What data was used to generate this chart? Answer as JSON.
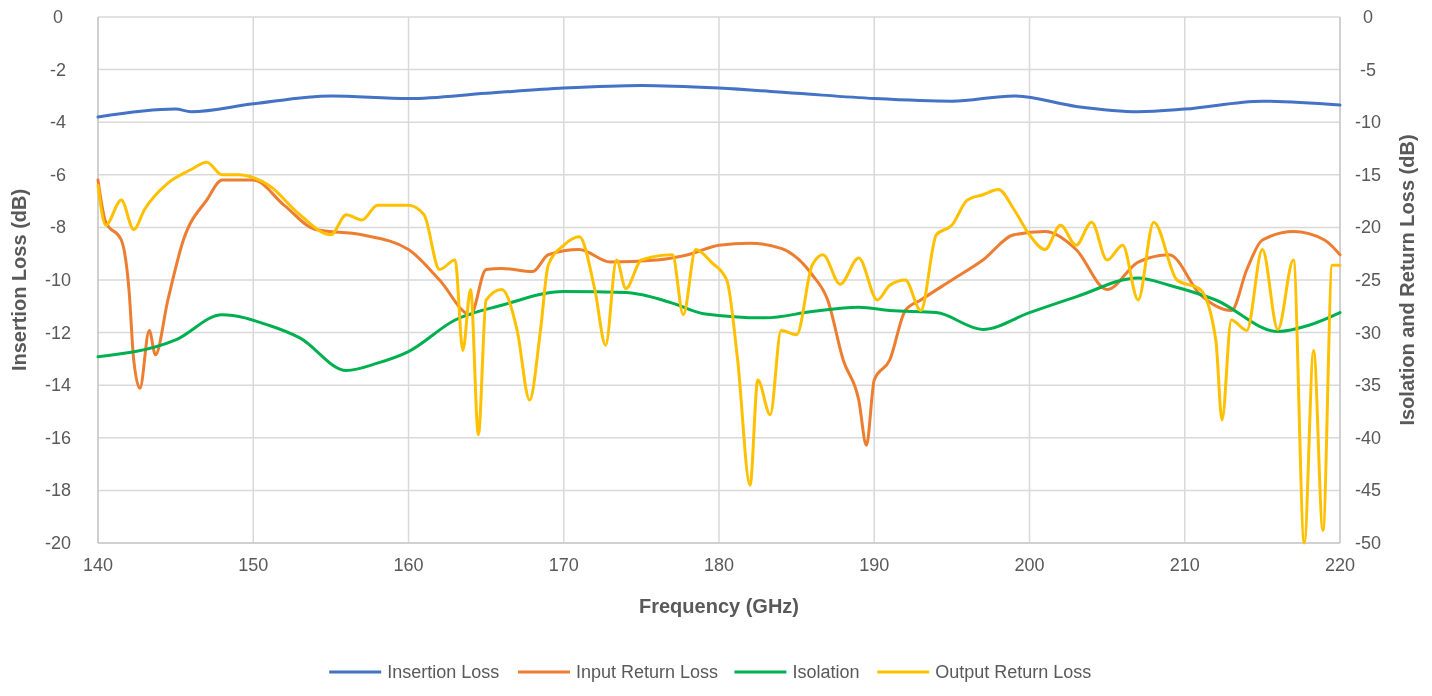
{
  "chart_data": {
    "type": "line",
    "xlabel": "Frequency (GHz)",
    "ylabel": "Insertion Loss (dB)",
    "y2label": "Isolation and Return Loss (dB)",
    "xlim": [
      140,
      220
    ],
    "xticks": [
      140,
      150,
      160,
      170,
      180,
      190,
      200,
      210,
      220
    ],
    "ylim": [
      -20,
      0
    ],
    "yticks": [
      -20,
      -18,
      -16,
      -14,
      -12,
      -10,
      -8,
      -6,
      -4,
      -2,
      0
    ],
    "y2lim": [
      -50,
      0
    ],
    "y2ticks": [
      -50,
      -45,
      -40,
      -35,
      -30,
      -25,
      -20,
      -15,
      -10,
      -5,
      0
    ],
    "grid": true,
    "legend": "bottom",
    "line_style": "solid",
    "marker": "none",
    "series": [
      {
        "name": "Insertion Loss",
        "color": "#4472c4",
        "x": [
          140,
          145,
          146,
          150,
          155,
          160,
          165,
          170,
          175,
          180,
          185,
          190,
          195,
          199,
          203,
          207,
          210,
          215,
          220
        ],
        "values": [
          -3.8,
          -3.5,
          -3.6,
          -3.3,
          -3.0,
          -3.1,
          -2.9,
          -2.7,
          -2.6,
          -2.7,
          -2.9,
          -3.1,
          -3.2,
          -3.0,
          -3.4,
          -3.6,
          -3.5,
          -3.2,
          -3.35
        ]
      },
      {
        "name": "Input Return Loss",
        "color": "#ed7d31",
        "axis": "y2",
        "x": [
          140,
          140.5,
          141.5,
          142,
          142.3,
          142.7,
          143.3,
          143.7,
          144.5,
          145.5,
          147,
          148,
          150,
          152,
          154,
          157,
          160,
          162,
          164,
          165,
          166,
          168,
          169,
          171,
          173,
          176,
          178,
          180,
          182,
          184,
          186,
          187,
          188,
          189,
          189.5,
          190,
          191,
          192,
          193,
          195,
          197,
          199,
          201,
          203,
          205,
          207,
          209,
          211,
          213,
          214,
          215,
          217,
          219,
          220
        ],
        "values": [
          -15.5,
          -19.5,
          -21.2,
          -26,
          -32.6,
          -35.3,
          -29.8,
          -32.1,
          -26.9,
          -21.2,
          -17.4,
          -15.5,
          -15.5,
          -17.9,
          -20.2,
          -20.7,
          -22.1,
          -25,
          -28.3,
          -24,
          -23.9,
          -24.2,
          -22.6,
          -22.1,
          -23.3,
          -23.1,
          -22.6,
          -21.7,
          -21.5,
          -22,
          -24.5,
          -26.9,
          -32.6,
          -36.4,
          -40.7,
          -34.5,
          -32.6,
          -27.9,
          -26.9,
          -25,
          -23.1,
          -20.7,
          -20.4,
          -22.1,
          -25.9,
          -23.3,
          -22.6,
          -26.4,
          -27.9,
          -24,
          -21.2,
          -20.4,
          -21.2,
          -22.6
        ]
      },
      {
        "name": "Isolation",
        "color": "#00b050",
        "axis": "y2",
        "x": [
          140,
          145,
          148,
          151,
          153,
          156,
          158,
          160,
          163,
          166,
          170,
          174,
          177,
          179,
          183,
          186,
          189,
          191,
          194,
          197,
          200,
          203,
          207,
          209,
          212,
          216,
          218,
          220
        ],
        "values": [
          -32.3,
          -30.7,
          -28.3,
          -29.3,
          -30.5,
          -33.6,
          -32.9,
          -31.8,
          -28.8,
          -27.4,
          -26.1,
          -26.2,
          -27.2,
          -28.2,
          -28.6,
          -28,
          -27.6,
          -27.9,
          -28.1,
          -29.7,
          -28.1,
          -26.6,
          -24.8,
          -25.5,
          -26.9,
          -29.9,
          -29.3,
          -28.1
        ]
      },
      {
        "name": "Output Return Loss",
        "color": "#ffc000",
        "axis": "y2",
        "x": [
          140,
          140.5,
          141.5,
          142.3,
          143,
          144.5,
          146,
          147,
          148,
          149,
          151,
          153,
          155,
          156,
          157,
          158,
          160,
          161,
          162,
          163,
          163.5,
          164,
          164.5,
          165,
          166,
          167,
          167.8,
          168.5,
          169,
          170,
          171,
          172,
          172.7,
          173.4,
          174,
          175,
          177,
          177.7,
          178.5,
          179.5,
          180.5,
          181.2,
          182,
          182.5,
          183.3,
          184,
          185,
          186,
          186.7,
          187.8,
          189,
          190.2,
          191,
          192,
          193,
          194,
          195,
          196,
          197,
          198,
          199,
          200,
          201,
          202,
          203,
          204,
          205,
          206,
          207,
          208,
          209.5,
          211,
          212,
          212.4,
          213,
          214,
          215,
          216,
          217,
          217.7,
          218.3,
          218.9,
          219.5,
          220
        ],
        "values": [
          -16,
          -19.8,
          -17.4,
          -20.2,
          -18.3,
          -15.8,
          -14.5,
          -13.8,
          -15,
          -15,
          -16,
          -18.8,
          -20.7,
          -18.8,
          -19.3,
          -17.9,
          -17.9,
          -18.8,
          -24,
          -23.1,
          -31.7,
          -25.9,
          -39.7,
          -26.9,
          -25.9,
          -29.8,
          -36.4,
          -29.8,
          -23.6,
          -21.7,
          -20.9,
          -25.9,
          -31.2,
          -23.1,
          -25.8,
          -23.1,
          -22.6,
          -28.3,
          -22.1,
          -23.3,
          -25,
          -32.6,
          -44.5,
          -34.5,
          -37.8,
          -29.8,
          -30.2,
          -23.6,
          -22.6,
          -25.4,
          -22.9,
          -26.9,
          -25.5,
          -25,
          -27.9,
          -20.7,
          -19.8,
          -17.4,
          -16.9,
          -16.4,
          -18.3,
          -20.7,
          -22.1,
          -19.8,
          -21.7,
          -19.5,
          -23.1,
          -21.7,
          -26.9,
          -19.5,
          -25,
          -25.9,
          -30.7,
          -38.3,
          -28.8,
          -29.8,
          -22.1,
          -29.7,
          -23.1,
          -50,
          -31.7,
          -48.8,
          -23.6,
          -23.6
        ]
      }
    ]
  }
}
